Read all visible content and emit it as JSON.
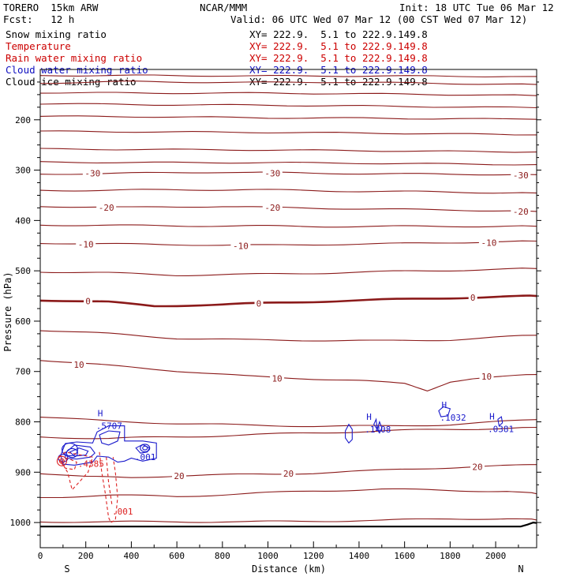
{
  "header": {
    "model": "TORERO  15km ARW",
    "org": "NCAR/MMM",
    "init": "Init: 18 UTC Tue 06 Mar 12",
    "fcst": "Fcst:   12 h",
    "valid": "Valid: 06 UTC Wed 07 Mar 12 (00 CST Wed 07 Mar 12)"
  },
  "fields": [
    {
      "name": "Snow mixing ratio",
      "color": "#000000",
      "xy": "XY= 222.9.  5.1 to 222.9.149.8"
    },
    {
      "name": "Temperature",
      "color": "#cc0000",
      "xy": "XY= 222.9.  5.1 to 222.9.149.8"
    },
    {
      "name": "Rain water mixing ratio",
      "color": "#cc0000",
      "xy": "XY= 222.9.  5.1 to 222.9.149.8"
    },
    {
      "name": "Cloud water mixing ratio",
      "color": "#1010c0",
      "xy": "XY= 222.9.  5.1 to 222.9.149.8"
    },
    {
      "name": "Cloud ice mixing ratio",
      "color": "#000000",
      "xy": "XY= 222.9.  5.1 to 222.9.149.8"
    }
  ],
  "chart_data": {
    "type": "line",
    "title": "",
    "xlabel": "Distance (km)",
    "ylabel": "Pressure (hPa)",
    "xlim": [
      0,
      2180
    ],
    "ylim": [
      1050,
      100
    ],
    "x_ticks": [
      0,
      200,
      400,
      600,
      800,
      1000,
      1200,
      1400,
      1600,
      1800,
      2000
    ],
    "y_ticks": [
      200,
      300,
      400,
      500,
      600,
      700,
      800,
      900,
      1000
    ],
    "endpoints": {
      "left": "S",
      "right": "N"
    },
    "colors": {
      "isotherm": "#8b1a1a",
      "rain": "#dd2222",
      "cloud_water": "#1a1acc",
      "ground": "#000000"
    },
    "isotherms": [
      {
        "label": "-30",
        "label_positions": [
          [
            230,
            306
          ],
          [
            1020,
            306
          ],
          [
            2110,
            310
          ]
        ],
        "points": [
          [
            0,
            308
          ],
          [
            400,
            306
          ],
          [
            800,
            304
          ],
          [
            1000,
            305
          ],
          [
            1400,
            307
          ],
          [
            1800,
            308
          ],
          [
            2180,
            309
          ]
        ]
      },
      {
        "label": "-20",
        "label_positions": [
          [
            290,
            374
          ],
          [
            1020,
            374
          ],
          [
            2110,
            382
          ]
        ],
        "points": [
          [
            0,
            372
          ],
          [
            400,
            374
          ],
          [
            800,
            372
          ],
          [
            1000,
            374
          ],
          [
            1400,
            377
          ],
          [
            1800,
            379
          ],
          [
            2180,
            382
          ]
        ]
      },
      {
        "label": "-10",
        "label_positions": [
          [
            200,
            447
          ],
          [
            880,
            450
          ],
          [
            1970,
            444
          ]
        ],
        "points": [
          [
            0,
            445
          ],
          [
            400,
            447
          ],
          [
            800,
            449
          ],
          [
            1000,
            449
          ],
          [
            1400,
            447
          ],
          [
            1800,
            444
          ],
          [
            2180,
            441
          ]
        ]
      },
      {
        "label": "0",
        "label_positions": [
          [
            210,
            560
          ],
          [
            960,
            565
          ],
          [
            1900,
            553
          ]
        ],
        "points": [
          [
            0,
            558
          ],
          [
            300,
            562
          ],
          [
            500,
            570
          ],
          [
            800,
            567
          ],
          [
            1000,
            564
          ],
          [
            1300,
            560
          ],
          [
            1700,
            555
          ],
          [
            2000,
            552
          ],
          [
            2180,
            550
          ]
        ]
      },
      {
        "label": "10",
        "label_positions": [
          [
            170,
            686
          ],
          [
            1040,
            714
          ],
          [
            1960,
            710
          ]
        ],
        "points": [
          [
            0,
            677
          ],
          [
            300,
            688
          ],
          [
            600,
            699
          ],
          [
            900,
            709
          ],
          [
            1100,
            713
          ],
          [
            1400,
            718
          ],
          [
            1600,
            724
          ],
          [
            1700,
            738
          ],
          [
            1800,
            720
          ],
          [
            1900,
            714
          ],
          [
            2180,
            706
          ]
        ]
      },
      {
        "label": "20",
        "label_positions": [
          [
            610,
            907
          ],
          [
            1090,
            903
          ],
          [
            1920,
            889
          ]
        ],
        "points": [
          [
            0,
            902
          ],
          [
            200,
            909
          ],
          [
            400,
            911
          ],
          [
            600,
            907
          ],
          [
            800,
            905
          ],
          [
            1000,
            904
          ],
          [
            1200,
            902
          ],
          [
            1400,
            898
          ],
          [
            1600,
            894
          ],
          [
            1800,
            891
          ],
          [
            2000,
            888
          ],
          [
            2180,
            885
          ]
        ]
      }
    ],
    "annotations": [
      {
        "type": "max",
        "label": "H",
        "value": ".5707",
        "x": 280,
        "p": 808
      },
      {
        "type": "max",
        "label": "H",
        "value": ".1408",
        "x": 1460,
        "p": 815
      },
      {
        "type": "max",
        "label": "H",
        "value": ".1032",
        "x": 1790,
        "p": 791
      },
      {
        "type": "max",
        "label": "H",
        "value": ".0381",
        "x": 2000,
        "p": 814
      },
      {
        "type": "cloud",
        "value": ".001",
        "x": 450,
        "p": 870
      },
      {
        "type": "rain",
        "value": ".4385",
        "x": 200,
        "p": 883
      },
      {
        "type": "rain",
        "value": ".001",
        "x": 350,
        "p": 978
      }
    ]
  }
}
